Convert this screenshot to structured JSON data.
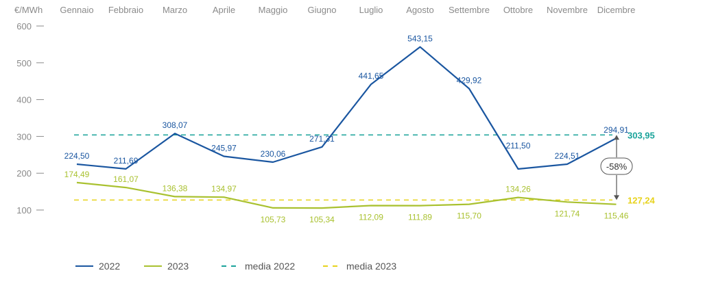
{
  "chart_data": {
    "type": "line",
    "unit_label": "€/MWh",
    "categories": [
      "Gennaio",
      "Febbraio",
      "Marzo",
      "Aprile",
      "Maggio",
      "Giugno",
      "Luglio",
      "Agosto",
      "Settembre",
      "Ottobre",
      "Novembre",
      "Dicembre"
    ],
    "y_ticks": [
      600,
      500,
      400,
      300,
      200,
      100
    ],
    "ylim": [
      100,
      600
    ],
    "series": [
      {
        "name": "2022",
        "color": "#1a56a0",
        "values": [
          224.5,
          211.69,
          308.07,
          245.97,
          230.06,
          271.31,
          441.65,
          543.15,
          429.92,
          211.5,
          224.51,
          294.91
        ],
        "labels": [
          "224,50",
          "211,69",
          "308,07",
          "245,97",
          "230,06",
          "271,31",
          "441,65",
          "543,15",
          "429,92",
          "211,50",
          "224,51",
          "294,91"
        ]
      },
      {
        "name": "2023",
        "color": "#a9c12f",
        "values": [
          174.49,
          161.07,
          136.38,
          134.97,
          105.73,
          105.34,
          112.09,
          111.89,
          115.7,
          134.26,
          121.74,
          115.46
        ],
        "labels": [
          "174,49",
          "161,07",
          "136,38",
          "134,97",
          "105,73",
          "105,34",
          "112,09",
          "111,89",
          "115,70",
          "134,26",
          "121,74",
          "115,46"
        ]
      }
    ],
    "averages": [
      {
        "name": "media 2022",
        "value": 303.95,
        "label": "303,95",
        "color": "#1aa39a"
      },
      {
        "name": "media 2023",
        "value": 127.24,
        "label": "127,24",
        "color": "#e7d21b"
      }
    ],
    "change_label": "-58%",
    "legend_placement": "bottom-left",
    "grid": false
  }
}
